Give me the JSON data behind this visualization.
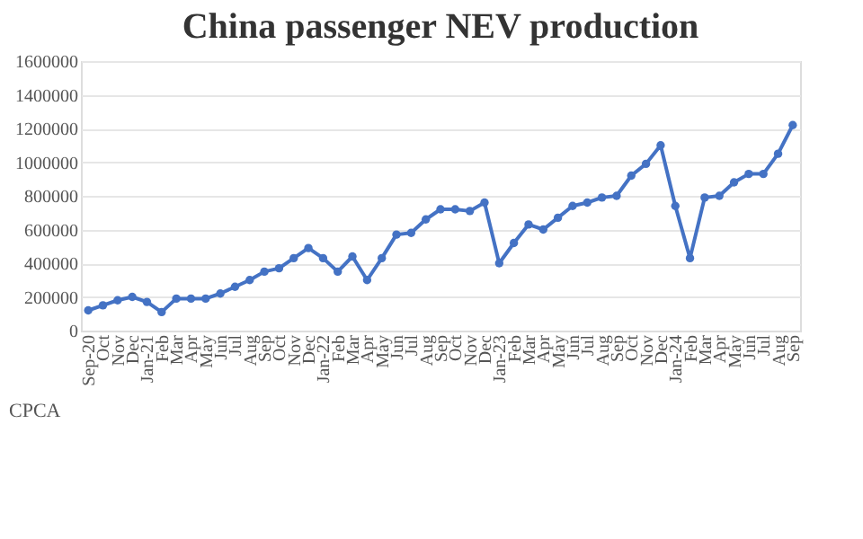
{
  "chart_data": {
    "type": "line",
    "title": "China passenger NEV production",
    "categories": [
      "Sep-20",
      "Oct",
      "Nov",
      "Dec",
      "Jan-21",
      "Feb",
      "Mar",
      "Apr",
      "May",
      "Jun",
      "Jul",
      "Aug",
      "Sep",
      "Oct",
      "Nov",
      "Dec",
      "Jan-22",
      "Feb",
      "Mar",
      "Apr",
      "May",
      "Jun",
      "Jul",
      "Aug",
      "Sep",
      "Oct",
      "Nov",
      "Dec",
      "Jan-23",
      "Feb",
      "Mar",
      "Apr",
      "May",
      "Jun",
      "Jul",
      "Aug",
      "Sep",
      "Oct",
      "Nov",
      "Dec",
      "Jan-24",
      "Feb",
      "Mar",
      "Apr",
      "May",
      "Jun",
      "Jul",
      "Aug",
      "Sep"
    ],
    "series": [
      {
        "color": "#4472c4",
        "values": [
          120000,
          150000,
          180000,
          200000,
          170000,
          110000,
          190000,
          190000,
          190000,
          220000,
          260000,
          300000,
          350000,
          370000,
          430000,
          490000,
          430000,
          350000,
          440000,
          300000,
          430000,
          570000,
          580000,
          660000,
          720000,
          720000,
          710000,
          760000,
          400000,
          520000,
          630000,
          600000,
          670000,
          740000,
          760000,
          790000,
          800000,
          920000,
          990000,
          1100000,
          740000,
          430000,
          790000,
          800000,
          880000,
          930000,
          930000,
          1050000,
          1220000
        ]
      }
    ],
    "ylim": [
      0,
      1600000
    ],
    "yticks": [
      0,
      200000,
      400000,
      600000,
      800000,
      1000000,
      1200000,
      1400000,
      1600000
    ],
    "grid": "y",
    "marker": "circle",
    "line_style": "solid",
    "annotations": [
      "CPCA"
    ]
  }
}
